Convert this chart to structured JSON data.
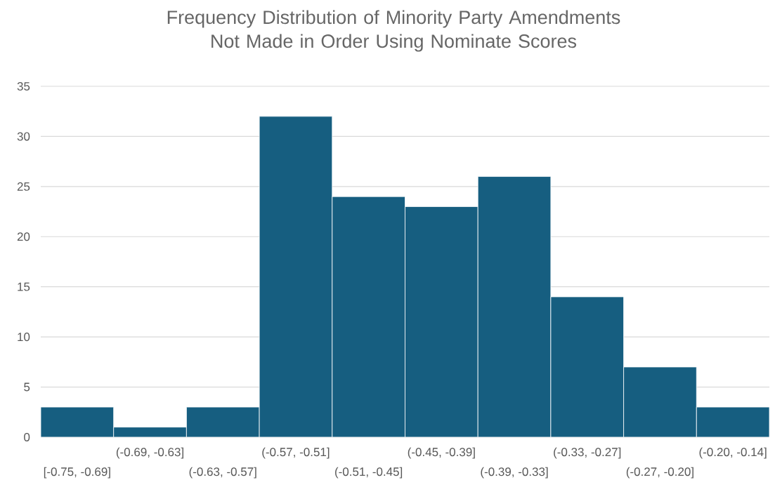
{
  "chart_data": {
    "type": "bar",
    "title": "Frequency Distribution of Minority Party Amendments Not Made in Order Using Nominate Scores",
    "categories": [
      "[-0.75, -0.69]",
      "(-0.69, -0.63]",
      "(-0.63, -0.57]",
      "(-0.57, -0.51]",
      "(-0.51, -0.45]",
      "(-0.45, -0.39]",
      "(-0.39, -0.33]",
      "(-0.33, -0.27]",
      "(-0.27, -0.20]",
      "(-0.20, -0.14]"
    ],
    "values": [
      3,
      1,
      3,
      32,
      24,
      23,
      26,
      14,
      7,
      3
    ],
    "color": "#165e80",
    "ylim": [
      0,
      35
    ],
    "yticks": [
      0,
      5,
      10,
      15,
      20,
      25,
      30,
      35
    ],
    "grid": "y"
  }
}
